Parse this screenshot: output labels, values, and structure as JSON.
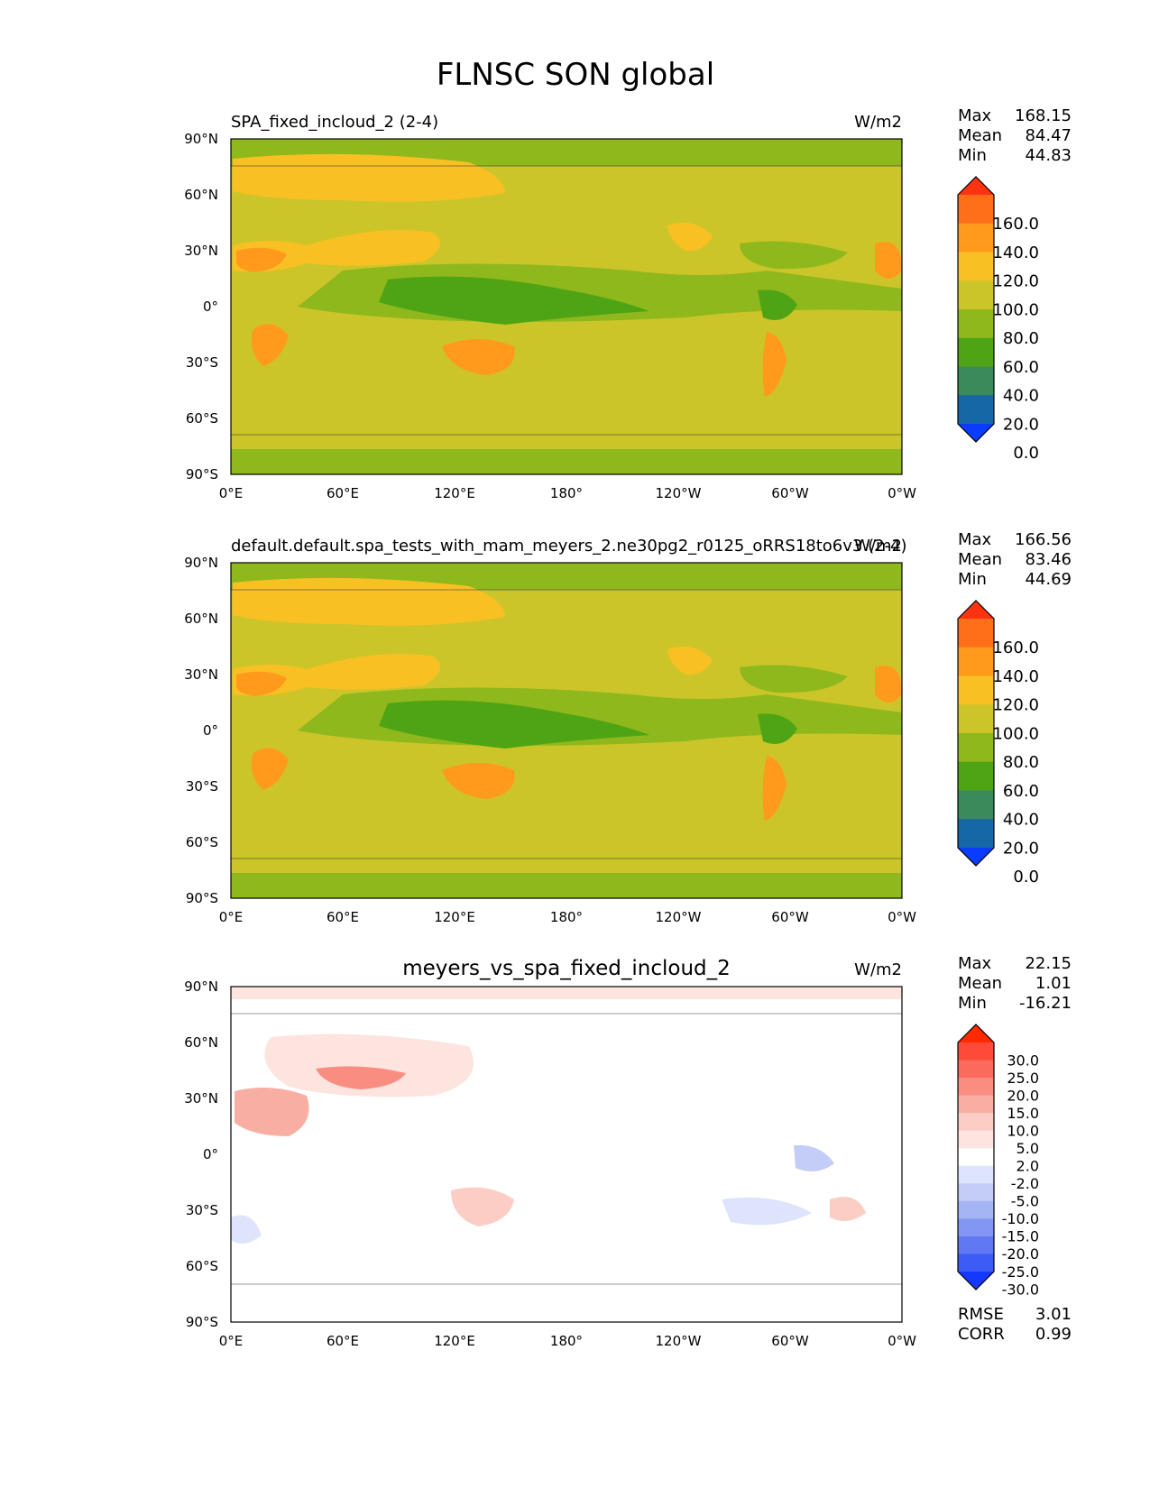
{
  "title": "FLNSC SON global",
  "axes": {
    "lat_ticks": [
      "90°N",
      "60°N",
      "30°N",
      "0°",
      "30°S",
      "60°S",
      "90°S"
    ],
    "lon_ticks": [
      "0°E",
      "60°E",
      "120°E",
      "180°",
      "120°W",
      "60°W",
      "0°W"
    ]
  },
  "chart_data": [
    {
      "type": "heatmap",
      "title": "SPA_fixed_incloud_2 (2-4)",
      "units": "W/m2",
      "stats": {
        "max_label": "Max",
        "max": "168.15",
        "mean_label": "Mean",
        "mean": "84.47",
        "min_label": "Min",
        "min": "44.83"
      },
      "colorbar": {
        "levels": [
          "160.0",
          "140.0",
          "120.0",
          "100.0",
          "80.0",
          "60.0",
          "40.0",
          "20.0",
          "0.0"
        ],
        "colors": [
          "#ff3311",
          "#ff6f1a",
          "#ff9a1c",
          "#f9c023",
          "#ccc52a",
          "#8fb81c",
          "#4ea414",
          "#3a8a5c",
          "#1667a5",
          "#0a3cff"
        ]
      },
      "xlim": [
        0,
        360
      ],
      "ylim": [
        -90,
        90
      ]
    },
    {
      "type": "heatmap",
      "title": "default.default.spa_tests_with_mam_meyers_2.ne30pg2_r0125_oRRS18to6v3 (2-4)",
      "units": "W/m2",
      "stats": {
        "max_label": "Max",
        "max": "166.56",
        "mean_label": "Mean",
        "mean": "83.46",
        "min_label": "Min",
        "min": "44.69"
      },
      "colorbar": {
        "levels": [
          "160.0",
          "140.0",
          "120.0",
          "100.0",
          "80.0",
          "60.0",
          "40.0",
          "20.0",
          "0.0"
        ],
        "colors": [
          "#ff3311",
          "#ff6f1a",
          "#ff9a1c",
          "#f9c023",
          "#ccc52a",
          "#8fb81c",
          "#4ea414",
          "#3a8a5c",
          "#1667a5",
          "#0a3cff"
        ]
      },
      "xlim": [
        0,
        360
      ],
      "ylim": [
        -90,
        90
      ]
    },
    {
      "type": "heatmap",
      "title": "meyers_vs_spa_fixed_incloud_2",
      "units": "W/m2",
      "stats": {
        "max_label": "Max",
        "max": "22.15",
        "mean_label": "Mean",
        "mean": "1.01",
        "min_label": "Min",
        "min": "-16.21"
      },
      "colorbar": {
        "levels": [
          "30.0",
          "25.0",
          "20.0",
          "15.0",
          "10.0",
          "5.0",
          "2.0",
          "-2.0",
          "-5.0",
          "-10.0",
          "-15.0",
          "-20.0",
          "-25.0",
          "-30.0"
        ],
        "colors": [
          "#ff2a00",
          "#ff4a3a",
          "#fb6a5c",
          "#f98d82",
          "#f8aea3",
          "#fbcdc5",
          "#fde4df",
          "#ffffff",
          "#dde4fb",
          "#c3cdf7",
          "#a5b4f4",
          "#8397f2",
          "#6079f2",
          "#3d5cf5",
          "#1538ff"
        ]
      },
      "metrics": {
        "rmse_label": "RMSE",
        "rmse": "3.01",
        "corr_label": "CORR",
        "corr": "0.99"
      },
      "xlim": [
        0,
        360
      ],
      "ylim": [
        -90,
        90
      ]
    }
  ]
}
